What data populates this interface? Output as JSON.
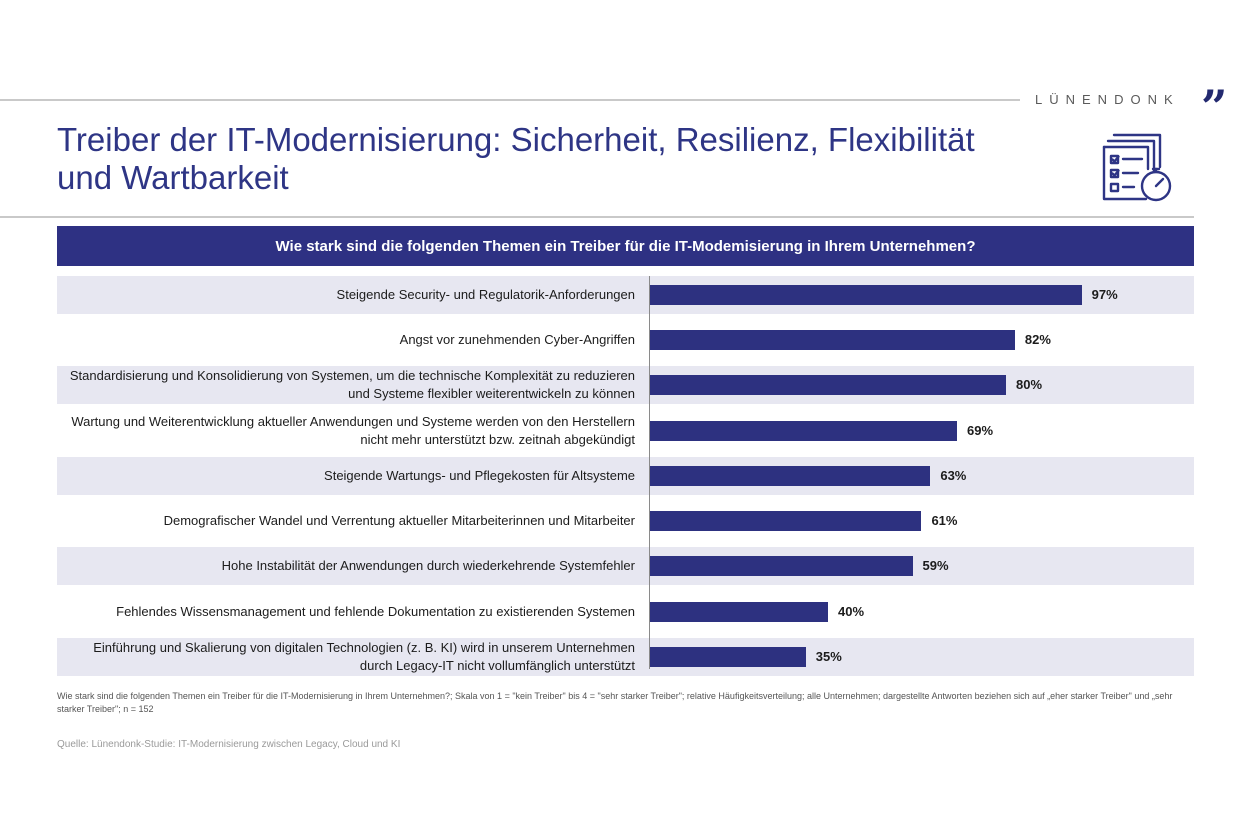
{
  "brand": {
    "name": "LÜNENDONK",
    "mark": "”"
  },
  "title": {
    "line1": "Treiber der IT-Modernisierung: Sicherheit, Resilienz, Flexibilität",
    "line2": "und Wartbarkeit"
  },
  "icon": "checklist-stopwatch-icon",
  "chart_data": {
    "type": "bar",
    "orientation": "horizontal",
    "title": "Wie stark sind die folgenden Themen ein Treiber für die IT-Modemisierung in Ihrem Unternehmen?",
    "xlabel": "",
    "ylabel": "",
    "xlim": [
      0,
      100
    ],
    "grid": false,
    "colors": {
      "bar": "#2d3180",
      "header": "#2e3183",
      "band": "#e7e7f1"
    },
    "categories": [
      "Steigende Security- und Regulatorik-Anforderungen",
      "Angst vor zunehmenden Cyber-Angriffen",
      "Standardisierung und Konsolidierung von Systemen, um die technische Komplexität zu reduzieren und Systeme flexibler weiterentwickeln zu können",
      "Wartung und Weiterentwicklung aktueller Anwendungen und Systeme werden von den Herstellern nicht mehr unterstützt bzw. zeitnah abgekündigt",
      "Steigende Wartungs- und Pflegekosten für Altsysteme",
      "Demografischer Wandel und Verrentung aktueller Mitarbeiterinnen und Mitarbeiter",
      "Hohe Instabilität der Anwendungen durch wiederkehrende Systemfehler",
      "Fehlendes Wissensmanagement und fehlende Dokumentation zu existierenden Systemen",
      "Einführung und Skalierung von digitalen Technologien (z. B. KI) wird in unserem Unternehmen durch Legacy-IT nicht vollumfänglich unterstützt"
    ],
    "values": [
      97,
      82,
      80,
      69,
      63,
      61,
      59,
      40,
      35
    ],
    "value_labels": [
      "97%",
      "82%",
      "80%",
      "69%",
      "63%",
      "61%",
      "59%",
      "40%",
      "35%"
    ]
  },
  "footnote": "Wie stark sind die folgenden Themen ein Treiber für die IT-Modernisierung in Ihrem Unternehmen?; Skala von 1 = \"kein Treiber\" bis 4 = \"sehr starker Treiber\"; relative Häufigkeitsverteilung; alle Unternehmen; dargestellte Antworten beziehen sich auf „eher starker Treiber\" und „sehr starker Treiber\"; n = 152",
  "source": "Quelle: Lünendonk-Studie: IT-Modernisierung zwischen Legacy, Cloud und KI"
}
